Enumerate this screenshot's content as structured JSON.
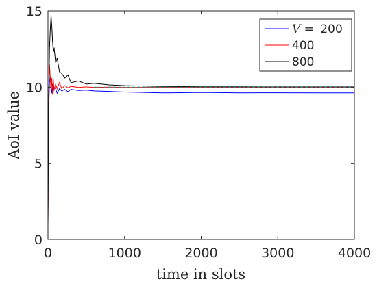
{
  "chart_data": {
    "type": "line",
    "title": "",
    "xlabel": "time in slots",
    "ylabel": "AoI value",
    "xlim": [
      0,
      4000
    ],
    "ylim": [
      0,
      15
    ],
    "xticks": [
      0,
      1000,
      2000,
      3000,
      4000
    ],
    "yticks": [
      0,
      5,
      10,
      15
    ],
    "grid": false,
    "legend_position": "top-right",
    "legend_title": "V =",
    "series": [
      {
        "name": "200",
        "legend_label": "V = 200",
        "color": "#0000ff",
        "x": [
          0,
          10,
          20,
          30,
          40,
          50,
          60,
          70,
          80,
          100,
          120,
          150,
          180,
          220,
          260,
          300,
          400,
          500,
          600,
          800,
          1000,
          1500,
          2000,
          2500,
          3000,
          3500,
          4000
        ],
        "y": [
          1,
          8.5,
          10.3,
          10.7,
          10.0,
          9.6,
          10.2,
          9.7,
          10.0,
          9.9,
          9.6,
          9.9,
          9.75,
          9.85,
          9.7,
          9.85,
          9.78,
          9.8,
          9.75,
          9.72,
          9.68,
          9.62,
          9.65,
          9.62,
          9.63,
          9.62,
          9.62
        ]
      },
      {
        "name": "400",
        "legend_label": "400",
        "color": "#ff0000",
        "x": [
          0,
          10,
          20,
          30,
          40,
          50,
          60,
          70,
          80,
          100,
          120,
          150,
          180,
          220,
          260,
          300,
          400,
          500,
          600,
          800,
          1000,
          1500,
          2000,
          2500,
          3000,
          3500,
          4000
        ],
        "y": [
          1,
          9.5,
          11.5,
          10.6,
          9.7,
          10.6,
          9.5,
          10.5,
          9.8,
          10.2,
          9.9,
          10.3,
          9.9,
          10.1,
          9.95,
          10.05,
          9.98,
          10.02,
          9.98,
          10.0,
          9.98,
          9.99,
          9.98,
          9.99,
          9.98,
          9.99,
          9.99
        ]
      },
      {
        "name": "800",
        "legend_label": "800",
        "color": "#000000",
        "x": [
          0,
          10,
          20,
          30,
          40,
          50,
          60,
          70,
          80,
          100,
          120,
          150,
          180,
          220,
          260,
          300,
          400,
          500,
          600,
          800,
          1000,
          1500,
          2000,
          2500,
          3000,
          3500,
          4000
        ],
        "y": [
          1,
          9.0,
          12.5,
          13.8,
          14.7,
          14.0,
          13.0,
          12.3,
          12.6,
          11.6,
          11.9,
          11.0,
          10.9,
          10.6,
          10.8,
          10.3,
          10.4,
          10.2,
          10.25,
          10.15,
          10.1,
          10.05,
          10.03,
          10.03,
          10.02,
          10.02,
          10.02
        ]
      },
      {
        "name": "",
        "legend_label": "",
        "color": "#00a0a0",
        "dashed": true,
        "x": [
          600,
          4000
        ],
        "y": [
          10.0,
          10.0
        ]
      }
    ]
  }
}
